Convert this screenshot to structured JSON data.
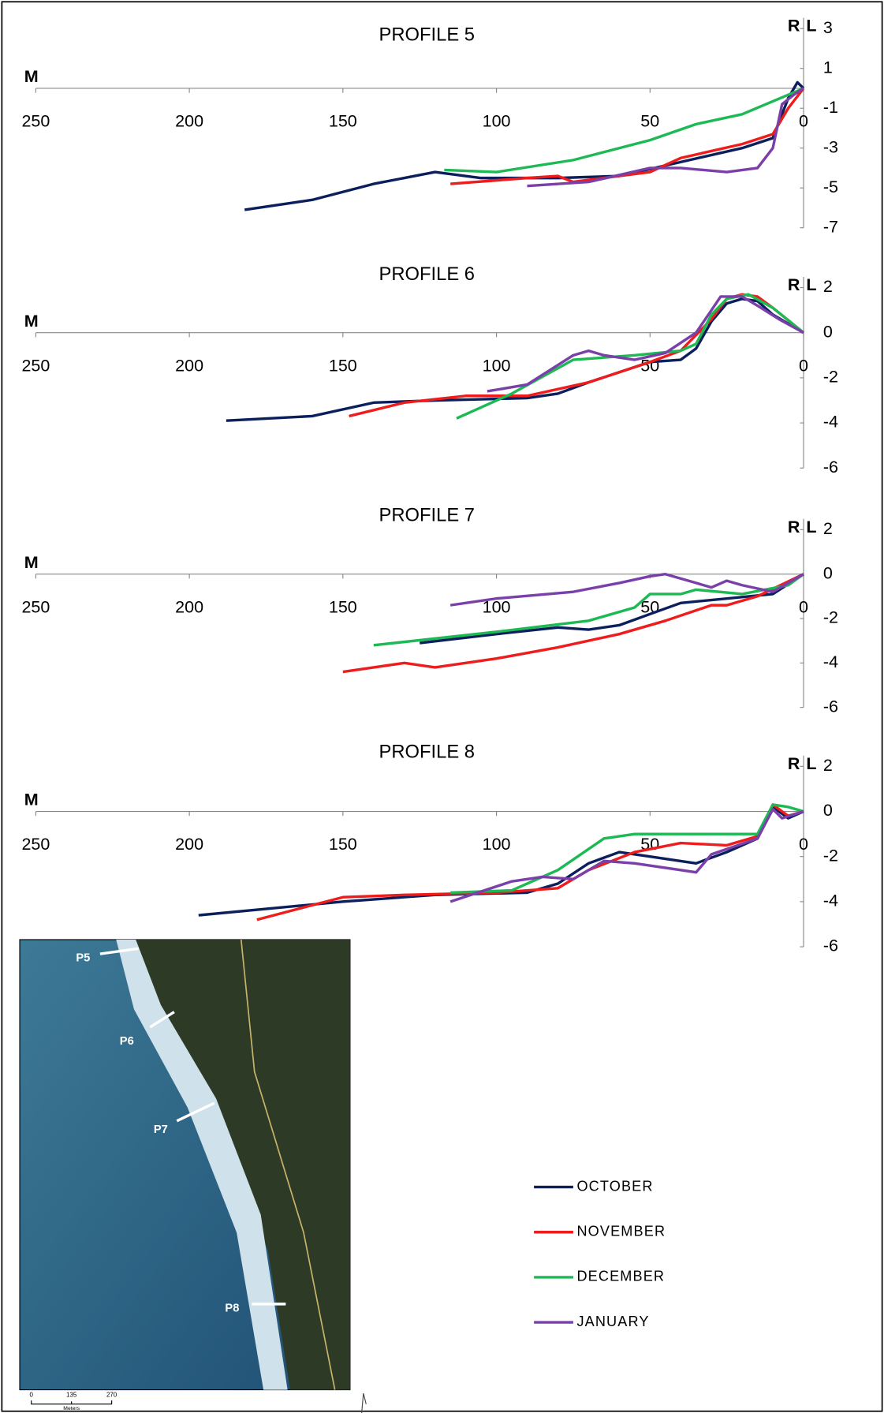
{
  "chart_data": [
    {
      "type": "line",
      "title": "PROFILE 5",
      "x_axis_label": "M",
      "side_labels": [
        "R",
        "L"
      ],
      "xlim": [
        250,
        0
      ],
      "xticks": [
        250,
        200,
        150,
        100,
        50,
        0
      ],
      "ylim": [
        -7,
        3
      ],
      "yticks": [
        3,
        1,
        -1,
        -3,
        -5,
        -7
      ],
      "grid": false,
      "series": [
        {
          "name": "OCTOBER",
          "color": "#0b1f5c",
          "x": [
            182,
            160,
            140,
            120,
            105,
            80,
            60,
            40,
            20,
            10,
            5,
            2,
            0
          ],
          "values": [
            -6.1,
            -5.6,
            -4.8,
            -4.2,
            -4.5,
            -4.5,
            -4.4,
            -3.7,
            -3.0,
            -2.5,
            -0.5,
            0.3,
            0
          ]
        },
        {
          "name": "NOVEMBER",
          "color": "#ee1c1c",
          "x": [
            115,
            90,
            80,
            75,
            50,
            40,
            20,
            10,
            5,
            0
          ],
          "values": [
            -4.8,
            -4.5,
            -4.4,
            -4.7,
            -4.2,
            -3.5,
            -2.8,
            -2.3,
            -1,
            0
          ]
        },
        {
          "name": "DECEMBER",
          "color": "#1db954",
          "x": [
            117,
            100,
            75,
            50,
            35,
            20,
            0
          ],
          "values": [
            -4.1,
            -4.2,
            -3.6,
            -2.6,
            -1.8,
            -1.3,
            0
          ]
        },
        {
          "name": "JANUARY",
          "color": "#7a3fa8",
          "x": [
            90,
            70,
            50,
            40,
            25,
            15,
            10,
            7,
            3,
            0
          ],
          "values": [
            -4.9,
            -4.7,
            -4.0,
            -4.0,
            -4.2,
            -4.0,
            -3,
            -0.8,
            -0.3,
            0
          ]
        }
      ]
    },
    {
      "type": "line",
      "title": "PROFILE 6",
      "x_axis_label": "M",
      "side_labels": [
        "R",
        "L"
      ],
      "xlim": [
        250,
        0
      ],
      "xticks": [
        250,
        200,
        150,
        100,
        50,
        0
      ],
      "ylim": [
        -6,
        2
      ],
      "yticks": [
        2,
        0,
        -2,
        -4,
        -6
      ],
      "grid": false,
      "series": [
        {
          "color": "#0b1f5c",
          "x": [
            188,
            160,
            140,
            120,
            90,
            80,
            70,
            50,
            40,
            35,
            30,
            25,
            20,
            15,
            10,
            0
          ],
          "values": [
            -3.9,
            -3.7,
            -3.1,
            -3,
            -2.9,
            -2.7,
            -2.2,
            -1.3,
            -1.2,
            -0.7,
            0.5,
            1.3,
            1.5,
            1.4,
            0.8,
            0
          ]
        },
        {
          "color": "#ee1c1c",
          "x": [
            148,
            130,
            110,
            90,
            70,
            50,
            40,
            30,
            25,
            20,
            15,
            10,
            0
          ],
          "values": [
            -3.7,
            -3.1,
            -2.8,
            -2.8,
            -2.2,
            -1.3,
            -0.8,
            0.6,
            1.5,
            1.7,
            1.6,
            1.1,
            0
          ]
        },
        {
          "color": "#1db954",
          "x": [
            113,
            95,
            75,
            55,
            40,
            35,
            30,
            25,
            18,
            10,
            0
          ],
          "values": [
            -3.8,
            -2.7,
            -1.2,
            -1,
            -0.8,
            -0.5,
            0.8,
            1.5,
            1.7,
            1.1,
            0
          ]
        },
        {
          "color": "#7a3fa8",
          "x": [
            103,
            90,
            75,
            70,
            65,
            55,
            45,
            35,
            30,
            27,
            20,
            15,
            8,
            0
          ],
          "values": [
            -2.6,
            -2.3,
            -1,
            -0.8,
            -1,
            -1.2,
            -0.9,
            0,
            1,
            1.6,
            1.6,
            1.2,
            0.6,
            0
          ]
        }
      ]
    },
    {
      "type": "line",
      "title": "PROFILE 7",
      "x_axis_label": "M",
      "side_labels": [
        "R",
        "L"
      ],
      "xlim": [
        250,
        0
      ],
      "xticks": [
        250,
        200,
        150,
        100,
        50,
        0
      ],
      "ylim": [
        -6,
        2
      ],
      "yticks": [
        2,
        0,
        -2,
        -4,
        -6
      ],
      "grid": false,
      "series": [
        {
          "color": "#0b1f5c",
          "x": [
            125,
            100,
            80,
            70,
            60,
            50,
            40,
            25,
            10,
            0
          ],
          "values": [
            -3.1,
            -2.7,
            -2.4,
            -2.5,
            -2.3,
            -1.8,
            -1.3,
            -1.1,
            -0.9,
            0
          ]
        },
        {
          "color": "#ee1c1c",
          "x": [
            150,
            130,
            120,
            100,
            80,
            60,
            45,
            30,
            25,
            15,
            0
          ],
          "values": [
            -4.4,
            -4,
            -4.2,
            -3.8,
            -3.3,
            -2.7,
            -2.1,
            -1.4,
            -1.4,
            -1,
            0
          ]
        },
        {
          "color": "#1db954",
          "x": [
            140,
            100,
            70,
            55,
            50,
            40,
            35,
            20,
            5,
            0
          ],
          "values": [
            -3.2,
            -2.6,
            -2.1,
            -1.5,
            -0.9,
            -0.9,
            -0.7,
            -0.9,
            -0.5,
            0
          ]
        },
        {
          "color": "#7a3fa8",
          "x": [
            115,
            100,
            75,
            60,
            50,
            45,
            35,
            30,
            25,
            20,
            10,
            0
          ],
          "values": [
            -1.4,
            -1.1,
            -0.8,
            -0.4,
            -0.1,
            0,
            -0.4,
            -0.6,
            -0.3,
            -0.5,
            -0.8,
            0
          ]
        }
      ]
    },
    {
      "type": "line",
      "title": "PROFILE 8",
      "x_axis_label": "M",
      "side_labels": [
        "R",
        "L"
      ],
      "xlim": [
        250,
        0
      ],
      "xticks": [
        250,
        200,
        150,
        100,
        50,
        0
      ],
      "ylim": [
        -6,
        2
      ],
      "yticks": [
        2,
        0,
        -2,
        -4,
        -6
      ],
      "grid": false,
      "series": [
        {
          "color": "#0b1f5c",
          "x": [
            197,
            150,
            120,
            90,
            80,
            70,
            60,
            50,
            35,
            25,
            15,
            10,
            5,
            0
          ],
          "values": [
            -4.6,
            -4,
            -3.7,
            -3.6,
            -3.2,
            -2.3,
            -1.8,
            -2,
            -2.3,
            -1.8,
            -1.2,
            0.2,
            -0.3,
            0
          ]
        },
        {
          "color": "#ee1c1c",
          "x": [
            178,
            150,
            130,
            100,
            80,
            70,
            55,
            40,
            25,
            15,
            10,
            5,
            0
          ],
          "values": [
            -4.8,
            -3.8,
            -3.7,
            -3.6,
            -3.4,
            -2.6,
            -1.8,
            -1.4,
            -1.5,
            -1.1,
            0.3,
            -0.2,
            0
          ]
        },
        {
          "color": "#1db954",
          "x": [
            115,
            95,
            80,
            65,
            55,
            30,
            15,
            10,
            5,
            0
          ],
          "values": [
            -3.6,
            -3.5,
            -2.6,
            -1.2,
            -1,
            -1,
            -1,
            0.3,
            0.2,
            0
          ]
        },
        {
          "color": "#7a3fa8",
          "x": [
            115,
            95,
            85,
            75,
            65,
            55,
            40,
            35,
            30,
            15,
            10,
            7,
            0
          ],
          "values": [
            -4,
            -3.1,
            -2.9,
            -3.0,
            -2.2,
            -2.3,
            -2.6,
            -2.7,
            -1.9,
            -1.2,
            0.1,
            -0.3,
            0
          ]
        }
      ]
    }
  ],
  "map": {
    "profile_labels": [
      "P5",
      "P6",
      "P7",
      "P8"
    ],
    "scale_labels": [
      "0",
      "135",
      "270"
    ],
    "scale_unit": "Meters"
  }
}
